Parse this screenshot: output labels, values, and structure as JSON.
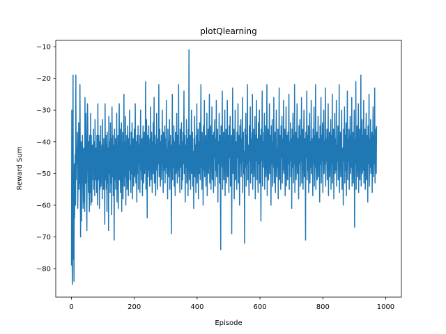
{
  "chart_data": {
    "type": "line",
    "title": "plotQlearning",
    "xlabel": "Episode",
    "ylabel": "Reward Sum",
    "xlim": [
      -50,
      1050
    ],
    "ylim": [
      -89,
      -8
    ],
    "xticks": [
      0,
      200,
      400,
      600,
      800,
      1000
    ],
    "yticks": [
      -80,
      -70,
      -60,
      -50,
      -40,
      -30,
      -20,
      -10
    ],
    "xtick_labels": [
      "0",
      "200",
      "400",
      "600",
      "800",
      "1000"
    ],
    "ytick_labels": [
      "−80",
      "−70",
      "−60",
      "−50",
      "−40",
      "−30",
      "−20",
      "−10"
    ],
    "grid": false,
    "legend": "none",
    "colors": {
      "line": "#1f77b4"
    },
    "series": [
      {
        "n": 1000,
        "x_start": 0,
        "x_step": 1,
        "values_note_excluded": false,
        "values": [
          -79,
          -30,
          -76,
          -85,
          -62,
          -19,
          -77,
          -55,
          -84,
          -47,
          -64,
          -50,
          -44,
          -60,
          -19,
          -52,
          -42,
          -45,
          -47,
          -37,
          -61,
          -52,
          -47,
          -34,
          -55,
          -44,
          -53,
          -22,
          -45,
          -70,
          -48,
          -40,
          -65,
          -43,
          -44,
          -38,
          -53,
          -61,
          -44,
          -42,
          -59,
          -46,
          -62,
          -26,
          -50,
          -53,
          -31,
          -41,
          -57,
          -68,
          -45,
          -28,
          -34,
          -47,
          -56,
          -40,
          -52,
          -62,
          -38,
          -47,
          -56,
          -31,
          -60,
          -38,
          -48,
          -59,
          -41,
          -52,
          -41,
          -49,
          -36,
          -55,
          -45,
          -40,
          -57,
          -33,
          -48,
          -52,
          -46,
          -42,
          -56,
          -38,
          -44,
          -60,
          -28,
          -47,
          -52,
          -38,
          -45,
          -61,
          -40,
          -55,
          -48,
          -35,
          -54,
          -44,
          -50,
          -41,
          -58,
          -33,
          -49,
          -43,
          -55,
          -39,
          -52,
          -46,
          -66,
          -28,
          -47,
          -52,
          -38,
          -55,
          -41,
          -62,
          -37,
          -48,
          -53,
          -42,
          -68,
          -32,
          -45,
          -50,
          -40,
          -56,
          -34,
          -46,
          -53,
          -39,
          -63,
          -29,
          -44,
          -51,
          -38,
          -57,
          -41,
          -49,
          -71,
          -36,
          -46,
          -52,
          -39,
          -55,
          -42,
          -48,
          -31,
          -59,
          -44,
          -53,
          -38,
          -61,
          -45,
          -40,
          -28,
          -52,
          -47,
          -36,
          -56,
          -43,
          -49,
          -34,
          -62,
          -41,
          -50,
          -37,
          -58,
          -44,
          -47,
          -25,
          -54,
          -40,
          -51,
          -45,
          -32,
          -60,
          -42,
          -48,
          -38,
          -55,
          -46,
          -35,
          -43,
          -57,
          -39,
          -49,
          -44,
          -30,
          -52,
          -41,
          -46,
          -56,
          -37,
          -50,
          -43,
          -34,
          -58,
          -45,
          -39,
          -48,
          -54,
          -42,
          -36,
          -51,
          -47,
          -28,
          -44,
          -53,
          -40,
          -46,
          -59,
          -38,
          -43,
          -50,
          -35,
          -55,
          -41,
          -47,
          -45,
          -38,
          -56,
          -42,
          -30,
          -49,
          -44,
          -52,
          -39,
          -46,
          -57,
          -41,
          -35,
          -48,
          -53,
          -43,
          -37,
          -50,
          -45,
          -40,
          -21,
          -55,
          -47,
          -33,
          -42,
          -64,
          -38,
          -46,
          -51,
          -44,
          -35,
          -49,
          -41,
          -54,
          -39,
          -47,
          -29,
          -52,
          -43,
          -37,
          -45,
          -56,
          -40,
          -48,
          -34,
          -50,
          -44,
          -26,
          -53,
          -42,
          -38,
          -46,
          -57,
          -41,
          -45,
          -31,
          -49,
          -43,
          -55,
          -39,
          -47,
          -42,
          -22,
          -51,
          -44,
          -36,
          -48,
          -54,
          -40,
          -45,
          -38,
          -52,
          -43,
          -30,
          -47,
          -46,
          -56,
          -37,
          -44,
          -49,
          -41,
          -35,
          -53,
          -45,
          -39,
          -48,
          -27,
          -50,
          -42,
          -44,
          -58,
          -36,
          -46,
          -51,
          -40,
          -43,
          -33,
          -55,
          -47,
          -38,
          -45,
          -41,
          -69,
          -49,
          -44,
          -25,
          -52,
          -39,
          -46,
          -48,
          -35,
          -54,
          -42,
          -40,
          -57,
          -37,
          -47,
          -50,
          -43,
          -31,
          -45,
          -53,
          -38,
          -44,
          -49,
          -22,
          -51,
          -41,
          -46,
          -56,
          -36,
          -43,
          -48,
          -39,
          -34,
          -55,
          -45,
          -40,
          -52,
          -37,
          -47,
          -42,
          -24,
          -50,
          -44,
          -38,
          -59,
          -46,
          -41,
          -48,
          -33,
          -53,
          -43,
          -39,
          -45,
          -57,
          -36,
          -49,
          -11,
          -52,
          -42,
          -46,
          -38,
          -55,
          -44,
          -40,
          -30,
          -50,
          -47,
          -37,
          -54,
          -43,
          -45,
          -61,
          -39,
          -48,
          -32,
          -51,
          -44,
          -41,
          -56,
          -38,
          -46,
          -28,
          -53,
          -42,
          -47,
          -36,
          -58,
          -40,
          -45,
          -50,
          -34,
          -44,
          -52,
          -39,
          -22,
          -48,
          -43,
          -55,
          -37,
          -46,
          -41,
          -60,
          -35,
          -49,
          -44,
          -27,
          -51,
          -40,
          -46,
          -38,
          -54,
          -43,
          -45,
          -31,
          -57,
          -41,
          -48,
          -36,
          -50,
          -44,
          -39,
          -25,
          -53,
          -42,
          -47,
          -35,
          -55,
          -40,
          -46,
          -29,
          -52,
          -43,
          -38,
          -48,
          -56,
          -37,
          -45,
          -41,
          -33,
          -54,
          -44,
          -39,
          -49,
          -27,
          -51,
          -42,
          -46,
          -36,
          -59,
          -40,
          -47,
          -44,
          -31,
          -53,
          -41,
          -38,
          -50,
          -74,
          -35,
          -48,
          -43,
          -45,
          -24,
          -55,
          -40,
          -46,
          -37,
          -52,
          -44,
          -42,
          -30,
          -57,
          -39,
          -49,
          -36,
          -53,
          -41,
          -47,
          -27,
          -51,
          -43,
          -38,
          -46,
          -56,
          -35,
          -45,
          -40,
          -32,
          -54,
          -44,
          -48,
          -38,
          -69,
          -42,
          -45,
          -23,
          -50,
          -41,
          -47,
          -36,
          -58,
          -39,
          -46,
          -30,
          -52,
          -43,
          -40,
          -49,
          -55,
          -37,
          -45,
          -42,
          -28,
          -53,
          -44,
          -38,
          -48,
          -60,
          -35,
          -47,
          -41,
          -33,
          -51,
          -45,
          -39,
          -46,
          -26,
          -56,
          -42,
          -37,
          -50,
          -43,
          -44,
          -72,
          -36,
          -48,
          -40,
          -31,
          -54,
          -45,
          -38,
          -47,
          -22,
          -52,
          -43,
          -41,
          -49,
          -57,
          -35,
          -46,
          -44,
          -29,
          -53,
          -39,
          -42,
          -50,
          -37,
          -45,
          -25,
          -55,
          -40,
          -48,
          -36,
          -51,
          -43,
          -44,
          -32,
          -58,
          -38,
          -46,
          -41,
          -27,
          -52,
          -45,
          -39,
          -49,
          -56,
          -34,
          -47,
          -42,
          -30,
          -53,
          -44,
          -38,
          -50,
          -65,
          -36,
          -46,
          -41,
          -24,
          -54,
          -43,
          -40,
          -48,
          -37,
          -45,
          -31,
          -55,
          -42,
          -47,
          -35,
          -51,
          -44,
          -39,
          -22,
          -57,
          -41,
          -46,
          -36,
          -52,
          -43,
          -40,
          -28,
          -50,
          -45,
          -38,
          -49,
          -60,
          -35,
          -47,
          -42,
          -33,
          -54,
          -44,
          -40,
          -48,
          -26,
          -53,
          -41,
          -46,
          -37,
          -56,
          -43,
          -39,
          -30,
          -51,
          -45,
          -42,
          -48,
          -36,
          -58,
          -40,
          -47,
          -23,
          -52,
          -44,
          -38,
          -46,
          -55,
          -35,
          -45,
          -41,
          -32,
          -53,
          -43,
          -39,
          -49,
          -27,
          -50,
          -42,
          -46,
          -36,
          -57,
          -40,
          -44,
          -29,
          -54,
          -45,
          -38,
          -48,
          -52,
          -37,
          -47,
          -41,
          -25,
          -55,
          -43,
          -40,
          -46,
          -34,
          -51,
          -44,
          -39,
          -61,
          -36,
          -48,
          -42,
          -31,
          -53,
          -45,
          -38,
          -47,
          -22,
          -56,
          -41,
          -46,
          -37,
          -52,
          -43,
          -40,
          -28,
          -50,
          -44,
          -39,
          -49,
          -58,
          -35,
          -47,
          -42,
          -33,
          -54,
          -45,
          -38,
          -46,
          -26,
          -53,
          -41,
          -48,
          -36,
          -55,
          -43,
          -40,
          -30,
          -51,
          -44,
          -39,
          -47,
          -71,
          -37,
          -45,
          -42,
          -24,
          -52,
          -46,
          -38,
          -49,
          -35,
          -56,
          -41,
          -44,
          -31,
          -53,
          -43,
          -40,
          -48,
          -27,
          -50,
          -45,
          -39,
          -46,
          -57,
          -36,
          -47,
          -42,
          -29,
          -54,
          -44,
          -38,
          -48,
          -22,
          -55,
          -41,
          -46,
          -37,
          -52,
          -43,
          -40,
          -32,
          -51,
          -45,
          -39,
          -49,
          -59,
          -35,
          -47,
          -42,
          -26,
          -53,
          -44,
          -38,
          -46,
          -34,
          -56,
          -41,
          -48,
          -30,
          -50,
          -43,
          -40,
          -47,
          -23,
          -54,
          -45,
          -39,
          -46,
          -36,
          -52,
          -42,
          -44,
          -28,
          -57,
          -41,
          -48,
          -37,
          -51,
          -43,
          -40,
          -33,
          -55,
          -45,
          -38,
          -47,
          -25,
          -53,
          -42,
          -46,
          -36,
          -58,
          -40,
          -44,
          -31,
          -50,
          -43,
          -39,
          -49,
          -27,
          -54,
          -45,
          -41,
          -46,
          -35,
          -52,
          -42,
          -47,
          -22,
          -56,
          -40,
          -44,
          -37,
          -51,
          -43,
          -39,
          -30,
          -55,
          -45,
          -42,
          -48,
          -60,
          -36,
          -46,
          -41,
          -29,
          -53,
          -44,
          -38,
          -49,
          -34,
          -57,
          -40,
          -47,
          -24,
          -52,
          -43,
          -39,
          -46,
          -36,
          -55,
          -42,
          -44,
          -32,
          -50,
          -45,
          -38,
          -48,
          -26,
          -54,
          -41,
          -46,
          -37,
          -53,
          -43,
          -40,
          -30,
          -67,
          -44,
          -39,
          -47,
          -21,
          -55,
          -42,
          -45,
          -35,
          -51,
          -43,
          -40,
          -28,
          -56,
          -41,
          -48,
          -36,
          -52,
          -44,
          -39,
          -19,
          -54,
          -42,
          -46,
          -33,
          -50,
          -45,
          -38,
          -49,
          -27,
          -53,
          -41,
          -47,
          -36,
          -55,
          -43,
          -40,
          -31,
          -52,
          -45,
          -38,
          -46,
          -59,
          -35,
          -47,
          -42,
          -25,
          -54,
          -44,
          -39,
          -48,
          -33,
          -50,
          -41,
          -46,
          -37,
          -56,
          -43,
          -40,
          -29,
          -51,
          -45,
          -38,
          -47,
          -23,
          -53,
          -42,
          -46,
          -36,
          -50,
          -35
        ]
      }
    ]
  }
}
